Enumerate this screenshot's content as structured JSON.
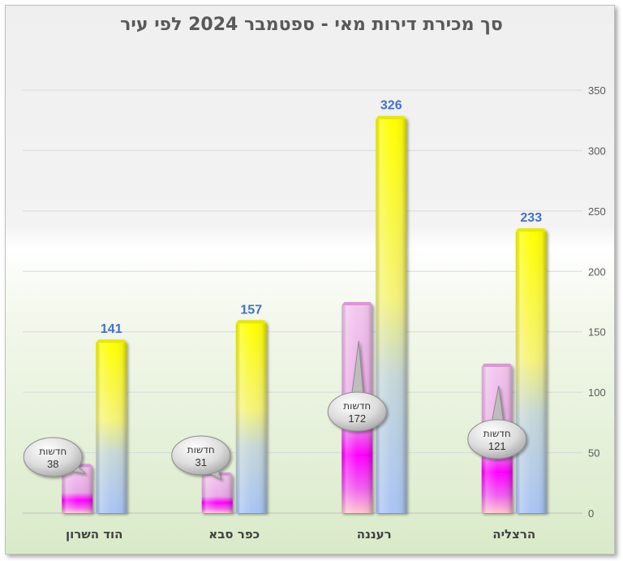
{
  "chart_data": {
    "type": "bar",
    "title": "סך מכירת דירות מאי - ספטמבר 2024 לפי עיר",
    "categories": [
      "הוד השרון",
      "כפר סבא",
      "רעננה",
      "הרצליה"
    ],
    "series": [
      {
        "values": [
          38,
          31,
          172,
          121
        ],
        "colors": [
          "#ff00ff",
          "#ffc7ce"
        ]
      },
      {
        "values": [
          141,
          157,
          326,
          233
        ],
        "colors": [
          "#ffff00",
          "#a9c4f5"
        ]
      }
    ],
    "callouts": [
      {
        "category": "הוד השרון",
        "label": "חדשות",
        "value": 38
      },
      {
        "category": "כפר סבא",
        "label": "חדשות",
        "value": 31
      },
      {
        "category": "רעננה",
        "label": "חדשות",
        "value": 172
      },
      {
        "category": "הרצליה",
        "label": "חדשות",
        "value": 121
      }
    ],
    "ylim": [
      0,
      350
    ],
    "yticks": [
      0,
      50,
      100,
      150,
      200,
      250,
      300,
      350
    ],
    "grid": true,
    "y_axis_side": "right",
    "value_label_color": "#4472c4"
  }
}
